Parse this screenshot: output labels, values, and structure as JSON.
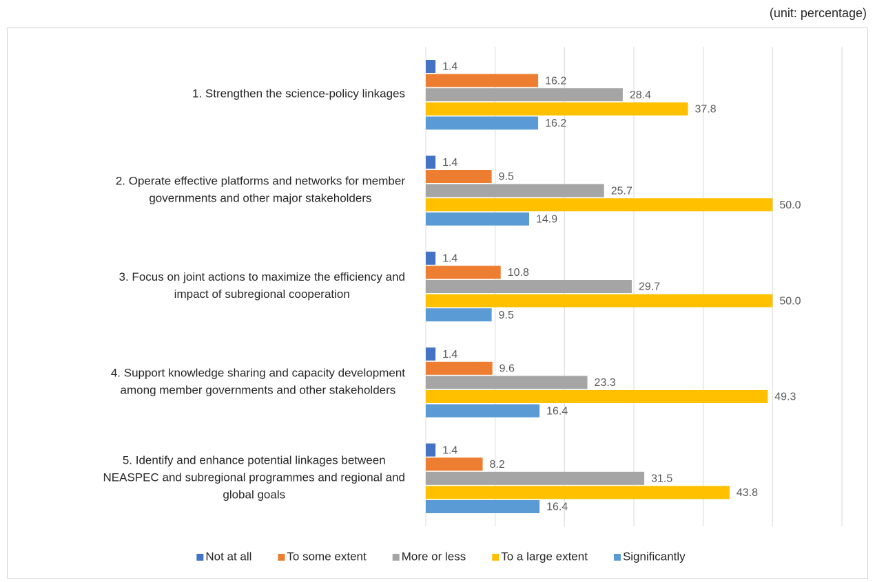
{
  "chart_data": {
    "type": "hbar",
    "unit_label": "(unit: percentage)",
    "categories": [
      "1. Strengthen the science-policy linkages",
      "2.  Operate effective platforms and networks for member\ngovernments and other major stakeholders",
      "3. Focus on joint actions to maximize the efficiency and\nimpact of subregional cooperation",
      "4. Support knowledge sharing and capacity development\namong member governments and other stakeholders",
      "5. Identify and enhance potential linkages between\nNEASPEC and subregional programmes and regional and\nglobal goals"
    ],
    "series": [
      {
        "name": "Not at all",
        "color": "#4472c4",
        "values": [
          1.4,
          1.4,
          1.4,
          1.4,
          1.4
        ],
        "value_labels": [
          "1.4",
          "1.4",
          "1.4",
          "1.4",
          "1.4"
        ]
      },
      {
        "name": "To some extent",
        "color": "#ed7d31",
        "values": [
          16.2,
          9.5,
          10.8,
          9.6,
          8.2
        ],
        "value_labels": [
          "16.2",
          "9.5",
          "10.8",
          "9.6",
          "8.2"
        ]
      },
      {
        "name": "More or less",
        "color": "#a5a5a5",
        "values": [
          28.4,
          25.7,
          29.7,
          23.3,
          31.5
        ],
        "value_labels": [
          "28.4",
          "25.7",
          "29.7",
          "23.3",
          "31.5"
        ]
      },
      {
        "name": "To a large extent",
        "color": "#ffc000",
        "values": [
          37.8,
          50,
          50,
          49.3,
          43.8
        ],
        "value_labels": [
          "37.8",
          "50.0",
          "50.0",
          "49.3",
          "43.8"
        ]
      },
      {
        "name": "Significantly",
        "color": "#5b9bd5",
        "values": [
          16.2,
          14.9,
          9.5,
          16.4,
          16.4
        ],
        "value_labels": [
          "16.2",
          "14.9",
          "9.5",
          "16.4",
          "16.4"
        ]
      }
    ],
    "xlim": [
      0,
      60
    ],
    "xticks": [
      0,
      10,
      20,
      30,
      40,
      50,
      60
    ],
    "grid": true,
    "legend": "bottom"
  }
}
